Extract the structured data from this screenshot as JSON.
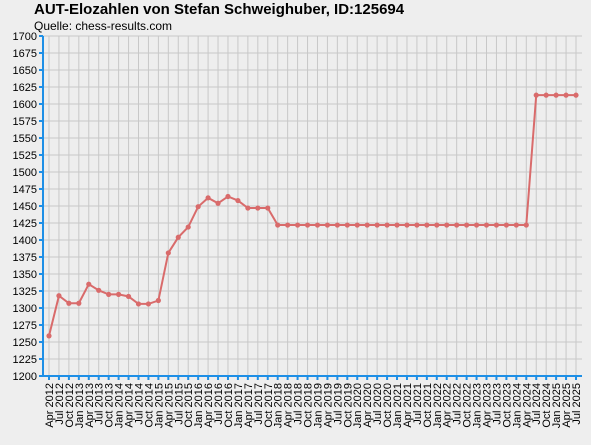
{
  "chart_data": {
    "type": "line",
    "title": "AUT-Elozahlen von Stefan Schweighuber, ID:125694",
    "subtitle": "Quelle: chess-results.com",
    "xlabel": "",
    "ylabel": "",
    "ylim": [
      1200,
      1700
    ],
    "ytick_step": 25,
    "grid": true,
    "legend": "none",
    "colors": {
      "line": "#d96b6b",
      "axis": "#1e8fe6",
      "grid": "#c8c8c8",
      "background": "#eeeeee"
    },
    "x": [
      "Apr 2012",
      "Jul 2012",
      "Oct 2012",
      "Jan 2013",
      "Apr 2013",
      "Jul 2013",
      "Oct 2013",
      "Jan 2014",
      "Apr 2014",
      "Jul 2014",
      "Oct 2014",
      "Jan 2015",
      "Apr 2015",
      "Jul 2015",
      "Oct 2015",
      "Jan 2016",
      "Apr 2016",
      "Jul 2016",
      "Oct 2016",
      "Jan 2017",
      "Apr 2017",
      "Jul 2017",
      "Oct 2017",
      "Jan 2018",
      "Apr 2018",
      "Jul 2018",
      "Oct 2018",
      "Jan 2019",
      "Apr 2019",
      "Jul 2019",
      "Oct 2019",
      "Jan 2020",
      "Apr 2020",
      "Jul 2020",
      "Oct 2020",
      "Jan 2021",
      "Apr 2021",
      "Jul 2021",
      "Oct 2021",
      "Jan 2022",
      "Apr 2022",
      "Jul 2022",
      "Oct 2022",
      "Jan 2023",
      "Apr 2023",
      "Jul 2023",
      "Oct 2023",
      "Jan 2024",
      "Apr 2024",
      "Jul 2024",
      "Oct 2024",
      "Jan 2025",
      "Apr 2025",
      "Jul 2025"
    ],
    "series": [
      {
        "name": "",
        "values": [
          1259,
          1318,
          1307,
          1307,
          1335,
          1326,
          1320,
          1320,
          1317,
          1306,
          1306,
          1311,
          1381,
          1404,
          1419,
          1449,
          1462,
          1454,
          1464,
          1458,
          1447,
          1447,
          1447,
          1422,
          1422,
          1422,
          1422,
          1422,
          1422,
          1422,
          1422,
          1422,
          1422,
          1422,
          1422,
          1422,
          1422,
          1422,
          1422,
          1422,
          1422,
          1422,
          1422,
          1422,
          1422,
          1422,
          1422,
          1422,
          1422,
          1613,
          1613,
          1613,
          1613,
          1613
        ]
      }
    ]
  }
}
